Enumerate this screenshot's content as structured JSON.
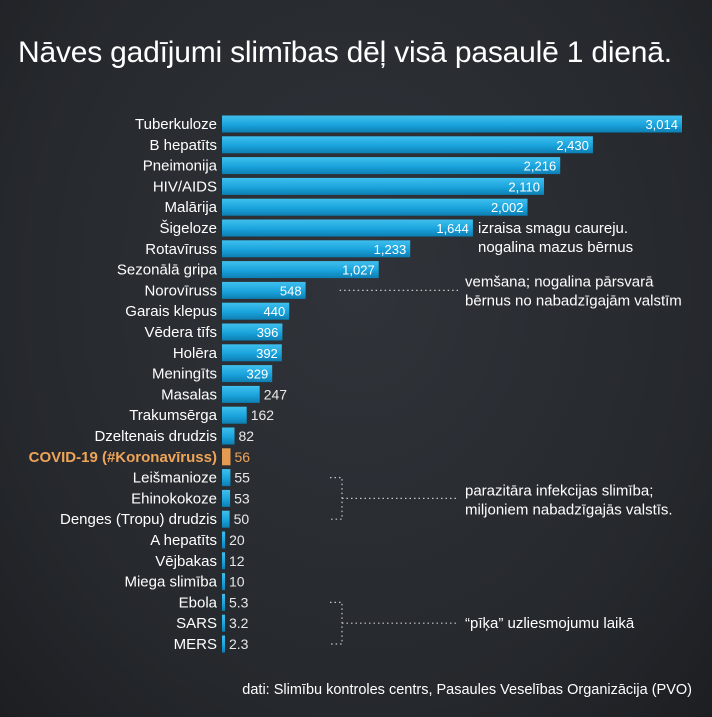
{
  "chart_data": {
    "type": "bar",
    "orientation": "horizontal",
    "title": "Nāves gadījumi slimības dēļ visā pasaulē 1 dienā.",
    "categories": [
      "Tuberkuloze",
      "B hepatīts",
      "Pneimonija",
      "HIV/AIDS",
      "Malārija",
      "Šigeloze",
      "Rotavīruss",
      "Sezonālā gripa",
      "Norovīruss",
      "Garais klepus",
      "Vēdera tīfs",
      "Holēra",
      "Meningīts",
      "Masalas",
      "Trakumsērga",
      "Dzeltenais drudzis",
      "COVID-19 (#Koronavīruss)",
      "Leišmanioze",
      "Ehinokokoze",
      "Denges (Tropu) drudzis",
      "A hepatīts",
      "Vējbakas",
      "Miega slimība",
      "Ebola",
      "SARS",
      "MERS"
    ],
    "values": [
      3014,
      2430,
      2216,
      2110,
      2002,
      1644,
      1233,
      1027,
      548,
      440,
      396,
      392,
      329,
      247,
      162,
      82,
      56,
      55,
      53,
      50,
      20,
      12,
      10,
      5.3,
      3.2,
      2.3
    ],
    "value_labels": [
      "3,014",
      "2,430",
      "2,216",
      "2,110",
      "2,002",
      "1,644",
      "1,233",
      "1,027",
      "548",
      "440",
      "396",
      "392",
      "329",
      "247",
      "162",
      "82",
      "56",
      "55",
      "53",
      "50",
      "20",
      "12",
      "10",
      "5.3",
      "3.2",
      "2.3"
    ],
    "highlight_category": "COVID-19 (#Koronavīruss)",
    "xlim": [
      0,
      3014
    ],
    "bar_color": "#1aa3dc",
    "highlight_color": "#e59a52",
    "grid": false,
    "annotations": [
      {
        "lines": [
          "izraisa smagu caureju.",
          "nogalina mazus bērnus"
        ],
        "target": "Šigeloze"
      },
      {
        "lines": [
          "vemšana; nogalina pārsvarā",
          "bērnus no nabadzīgajām valstīm"
        ],
        "target": "Norovīruss"
      },
      {
        "lines": [
          "parazitāra infekcijas slimība;",
          "miljoniem nabadzīgajās valstīs."
        ],
        "targets": [
          "Leišmanioze",
          "Ehinokokoze",
          "Denges (Tropu) drudzis"
        ]
      },
      {
        "lines": [
          "“pīķa” uzliesmojumu laikā"
        ],
        "targets": [
          "Ebola",
          "SARS",
          "MERS"
        ]
      }
    ],
    "source": "dati: Slimību kontroles centrs, Pasaules Veselības Organizācija (PVO)"
  }
}
